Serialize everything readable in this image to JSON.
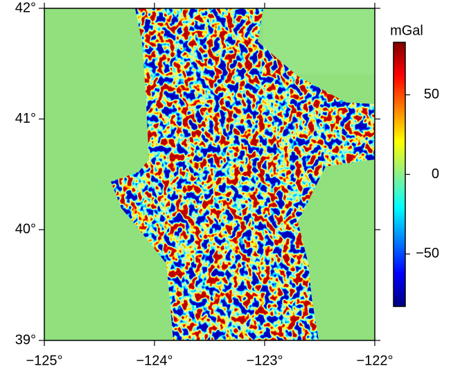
{
  "chart_data": {
    "type": "map",
    "xlim": [
      -125,
      -122
    ],
    "xticks": [
      {
        "value": -125,
        "label": "−125°"
      },
      {
        "value": -124,
        "label": "−124°"
      },
      {
        "value": -123,
        "label": "−123°"
      },
      {
        "value": -122,
        "label": "−122°"
      }
    ],
    "ylim": [
      39,
      42
    ],
    "yticks": [
      {
        "value": 39,
        "label": "39°"
      },
      {
        "value": 40,
        "label": "40°"
      },
      {
        "value": 41,
        "label": "41°"
      },
      {
        "value": 42,
        "label": "42°"
      }
    ],
    "colorbar": {
      "label": "mGal",
      "lim": [
        -83,
        83
      ],
      "ticks": [
        {
          "value": -50,
          "label": "−50"
        },
        0,
        50
      ]
    }
  }
}
